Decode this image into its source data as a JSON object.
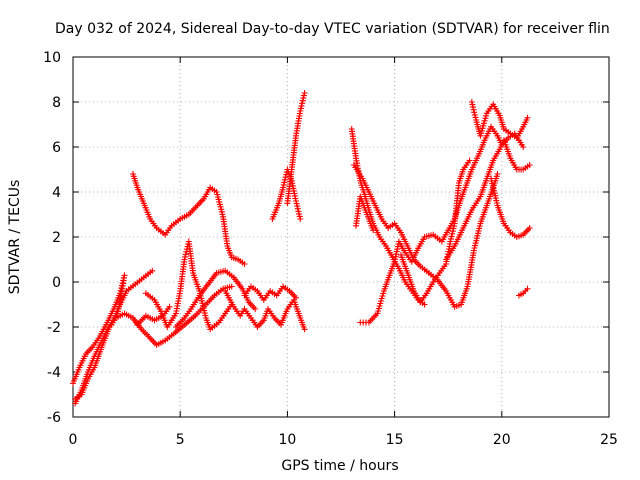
{
  "chart_data": {
    "type": "scatter",
    "title": "Day 032 of 2024, Sidereal Day-to-day VTEC variation (SDTVAR) for receiver flin",
    "xlabel": "GPS time / hours",
    "ylabel": "SDTVAR / TECUs",
    "xlim": [
      0,
      25
    ],
    "ylim": [
      -6,
      10
    ],
    "x_ticks": [
      "0",
      "5",
      "10",
      "15",
      "20",
      "25"
    ],
    "y_ticks": [
      "-6",
      "-4",
      "-2",
      "0",
      "2",
      "4",
      "6",
      "8",
      "10"
    ],
    "grid": true,
    "marker": "+",
    "color": "#ff0000",
    "series": [
      {
        "points": [
          [
            0.0,
            -4.5
          ],
          [
            0.3,
            -3.8
          ],
          [
            0.6,
            -3.2
          ],
          [
            0.9,
            -2.9
          ],
          [
            1.2,
            -2.5
          ],
          [
            1.6,
            -1.8
          ],
          [
            1.9,
            -1.2
          ],
          [
            2.2,
            -0.5
          ],
          [
            2.4,
            0.3
          ],
          [
            2.3,
            -0.3
          ],
          [
            2.1,
            -1.3
          ],
          [
            1.8,
            -1.8
          ],
          [
            1.6,
            -2.1
          ],
          [
            1.3,
            -2.7
          ],
          [
            1.0,
            -3.3
          ],
          [
            0.7,
            -4.0
          ],
          [
            0.4,
            -4.8
          ],
          [
            0.1,
            -5.4
          ]
        ]
      },
      {
        "points": [
          [
            0.1,
            -5.2
          ],
          [
            0.4,
            -5.0
          ],
          [
            0.7,
            -4.3
          ],
          [
            1.0,
            -3.8
          ],
          [
            1.3,
            -3.0
          ],
          [
            1.7,
            -2.0
          ],
          [
            2.0,
            -1.6
          ],
          [
            2.4,
            -1.4
          ],
          [
            2.8,
            -1.6
          ],
          [
            3.0,
            -1.9
          ],
          [
            3.4,
            -1.5
          ],
          [
            3.8,
            -1.7
          ],
          [
            4.2,
            -1.5
          ],
          [
            4.5,
            -1.1
          ]
        ]
      },
      {
        "points": [
          [
            1.8,
            -1.9
          ],
          [
            2.1,
            -1.2
          ],
          [
            2.5,
            -0.4
          ],
          [
            2.9,
            -0.1
          ],
          [
            3.3,
            0.2
          ],
          [
            3.7,
            0.5
          ]
        ]
      },
      {
        "points": [
          [
            2.8,
            -1.6
          ],
          [
            3.2,
            -2.1
          ],
          [
            3.6,
            -2.5
          ],
          [
            3.9,
            -2.8
          ],
          [
            4.3,
            -2.6
          ],
          [
            4.7,
            -2.3
          ],
          [
            5.2,
            -1.9
          ],
          [
            5.7,
            -1.5
          ],
          [
            6.2,
            -1.0
          ],
          [
            6.6,
            -0.6
          ],
          [
            7.0,
            -0.3
          ],
          [
            7.4,
            -0.2
          ]
        ]
      },
      {
        "points": [
          [
            2.8,
            4.8
          ],
          [
            3.0,
            4.2
          ],
          [
            3.3,
            3.5
          ],
          [
            3.6,
            2.8
          ],
          [
            3.9,
            2.4
          ],
          [
            4.3,
            2.1
          ],
          [
            4.6,
            2.5
          ],
          [
            5.0,
            2.8
          ],
          [
            5.4,
            3.0
          ],
          [
            5.8,
            3.4
          ],
          [
            6.1,
            3.7
          ],
          [
            6.4,
            4.2
          ],
          [
            6.7,
            4.0
          ],
          [
            7.0,
            2.9
          ],
          [
            7.2,
            1.6
          ],
          [
            7.4,
            1.1
          ],
          [
            7.7,
            1.0
          ],
          [
            8.0,
            0.8
          ]
        ]
      },
      {
        "points": [
          [
            3.4,
            -0.5
          ],
          [
            3.8,
            -0.8
          ],
          [
            4.1,
            -1.3
          ],
          [
            4.4,
            -2.0
          ],
          [
            4.8,
            -1.4
          ],
          [
            5.0,
            -0.4
          ],
          [
            5.2,
            1.0
          ],
          [
            5.4,
            1.8
          ],
          [
            5.6,
            0.4
          ],
          [
            5.9,
            -0.4
          ],
          [
            6.2,
            -1.6
          ],
          [
            6.4,
            -2.1
          ],
          [
            6.8,
            -1.8
          ],
          [
            7.1,
            -1.4
          ],
          [
            7.4,
            -1.0
          ]
        ]
      },
      {
        "points": [
          [
            4.8,
            -2.0
          ],
          [
            5.2,
            -1.6
          ],
          [
            5.5,
            -1.2
          ],
          [
            5.9,
            -0.6
          ],
          [
            6.3,
            -0.1
          ],
          [
            6.7,
            0.4
          ],
          [
            7.1,
            0.5
          ],
          [
            7.5,
            0.2
          ],
          [
            7.9,
            -0.3
          ],
          [
            8.2,
            -0.9
          ],
          [
            8.5,
            -1.2
          ]
        ]
      },
      {
        "points": [
          [
            7.1,
            -0.4
          ],
          [
            7.5,
            -1.1
          ],
          [
            7.8,
            -1.5
          ],
          [
            8.0,
            -1.2
          ],
          [
            8.3,
            -1.6
          ],
          [
            8.6,
            -2.0
          ],
          [
            8.9,
            -1.7
          ],
          [
            9.1,
            -1.2
          ],
          [
            9.4,
            -1.6
          ],
          [
            9.7,
            -1.9
          ],
          [
            10.0,
            -1.2
          ],
          [
            10.3,
            -0.8
          ],
          [
            10.6,
            -1.6
          ],
          [
            10.8,
            -2.1
          ]
        ]
      },
      {
        "points": [
          [
            8.0,
            -0.6
          ],
          [
            8.3,
            -0.2
          ],
          [
            8.6,
            -0.4
          ],
          [
            8.9,
            -0.8
          ],
          [
            9.2,
            -0.4
          ],
          [
            9.5,
            -0.6
          ],
          [
            9.8,
            -0.2
          ],
          [
            10.1,
            -0.4
          ],
          [
            10.4,
            -0.7
          ]
        ]
      },
      {
        "points": [
          [
            9.3,
            2.8
          ],
          [
            9.6,
            3.5
          ],
          [
            9.8,
            4.2
          ],
          [
            10.0,
            5.0
          ],
          [
            10.2,
            4.5
          ],
          [
            10.4,
            3.6
          ],
          [
            10.6,
            2.8
          ]
        ]
      },
      {
        "points": [
          [
            10.0,
            3.5
          ],
          [
            10.2,
            5.0
          ],
          [
            10.4,
            6.5
          ],
          [
            10.6,
            7.6
          ],
          [
            10.8,
            8.4
          ]
        ]
      },
      {
        "points": [
          [
            13.0,
            6.8
          ],
          [
            13.2,
            5.5
          ],
          [
            13.4,
            4.5
          ],
          [
            13.6,
            3.9
          ],
          [
            13.8,
            3.2
          ],
          [
            14.0,
            2.6
          ],
          [
            14.3,
            2.0
          ],
          [
            14.6,
            1.6
          ],
          [
            14.9,
            1.1
          ],
          [
            15.2,
            0.6
          ],
          [
            15.5,
            0.0
          ],
          [
            15.8,
            -0.4
          ],
          [
            16.1,
            -0.8
          ],
          [
            16.4,
            -1.0
          ]
        ]
      },
      {
        "points": [
          [
            13.1,
            5.2
          ],
          [
            13.5,
            4.6
          ],
          [
            13.8,
            4.0
          ],
          [
            14.1,
            3.4
          ],
          [
            14.4,
            2.8
          ],
          [
            14.7,
            2.4
          ],
          [
            15.0,
            2.6
          ],
          [
            15.3,
            2.2
          ],
          [
            15.6,
            1.6
          ],
          [
            15.9,
            1.0
          ],
          [
            16.2,
            0.7
          ],
          [
            16.6,
            0.4
          ],
          [
            17.0,
            0.1
          ],
          [
            17.4,
            -0.4
          ],
          [
            17.8,
            -1.1
          ],
          [
            18.1,
            -1.0
          ],
          [
            18.4,
            -0.2
          ],
          [
            18.7,
            1.4
          ],
          [
            19.0,
            2.6
          ],
          [
            19.3,
            3.4
          ],
          [
            19.6,
            4.2
          ],
          [
            19.8,
            4.8
          ]
        ]
      },
      {
        "points": [
          [
            13.2,
            2.5
          ],
          [
            13.4,
            3.8
          ],
          [
            13.6,
            3.3
          ],
          [
            13.8,
            2.8
          ],
          [
            14.0,
            2.3
          ]
        ]
      },
      {
        "points": [
          [
            13.4,
            -1.8
          ],
          [
            13.8,
            -1.8
          ],
          [
            14.2,
            -1.4
          ],
          [
            14.5,
            -0.4
          ],
          [
            14.8,
            0.4
          ],
          [
            15.0,
            0.9
          ],
          [
            15.2,
            1.8
          ],
          [
            15.5,
            1.3
          ],
          [
            15.8,
            0.9
          ],
          [
            16.1,
            1.5
          ],
          [
            16.4,
            2.0
          ],
          [
            16.8,
            2.1
          ],
          [
            17.2,
            1.8
          ],
          [
            17.5,
            2.3
          ],
          [
            17.8,
            2.8
          ],
          [
            18.0,
            3.4
          ],
          [
            18.3,
            4.2
          ],
          [
            18.6,
            5.0
          ],
          [
            18.9,
            5.6
          ],
          [
            19.2,
            6.3
          ],
          [
            19.5,
            6.9
          ],
          [
            19.8,
            6.5
          ],
          [
            20.0,
            6.1
          ],
          [
            20.3,
            6.4
          ],
          [
            20.6,
            6.6
          ],
          [
            21.0,
            6.0
          ]
        ]
      },
      {
        "points": [
          [
            15.3,
            1.2
          ],
          [
            15.6,
            0.4
          ],
          [
            15.9,
            -0.4
          ],
          [
            16.2,
            -0.9
          ],
          [
            16.5,
            -0.5
          ],
          [
            16.8,
            0.0
          ],
          [
            17.1,
            0.4
          ],
          [
            17.4,
            0.8
          ],
          [
            17.6,
            1.8
          ],
          [
            17.8,
            2.6
          ],
          [
            18.0,
            4.4
          ],
          [
            18.2,
            5.0
          ],
          [
            18.5,
            5.4
          ]
        ]
      },
      {
        "points": [
          [
            17.4,
            1.0
          ],
          [
            17.8,
            1.6
          ],
          [
            18.2,
            2.4
          ],
          [
            18.6,
            3.2
          ],
          [
            19.0,
            3.8
          ],
          [
            19.3,
            4.6
          ],
          [
            19.6,
            5.4
          ],
          [
            19.9,
            5.9
          ],
          [
            20.1,
            6.3
          ],
          [
            20.4,
            5.5
          ],
          [
            20.7,
            5.0
          ],
          [
            21.0,
            5.0
          ],
          [
            21.3,
            5.2
          ]
        ]
      },
      {
        "points": [
          [
            18.6,
            8.0
          ],
          [
            18.8,
            7.2
          ],
          [
            19.0,
            6.5
          ],
          [
            19.3,
            7.5
          ],
          [
            19.6,
            7.9
          ],
          [
            19.9,
            7.4
          ],
          [
            20.1,
            6.8
          ],
          [
            20.4,
            6.6
          ],
          [
            20.7,
            6.4
          ],
          [
            21.0,
            6.9
          ],
          [
            21.2,
            7.3
          ]
        ]
      },
      {
        "points": [
          [
            19.5,
            4.6
          ],
          [
            19.8,
            3.4
          ],
          [
            20.1,
            2.6
          ],
          [
            20.4,
            2.2
          ],
          [
            20.7,
            2.0
          ],
          [
            21.0,
            2.1
          ],
          [
            21.3,
            2.4
          ]
        ]
      },
      {
        "points": [
          [
            20.8,
            -0.6
          ],
          [
            21.0,
            -0.5
          ],
          [
            21.2,
            -0.3
          ]
        ]
      }
    ]
  }
}
